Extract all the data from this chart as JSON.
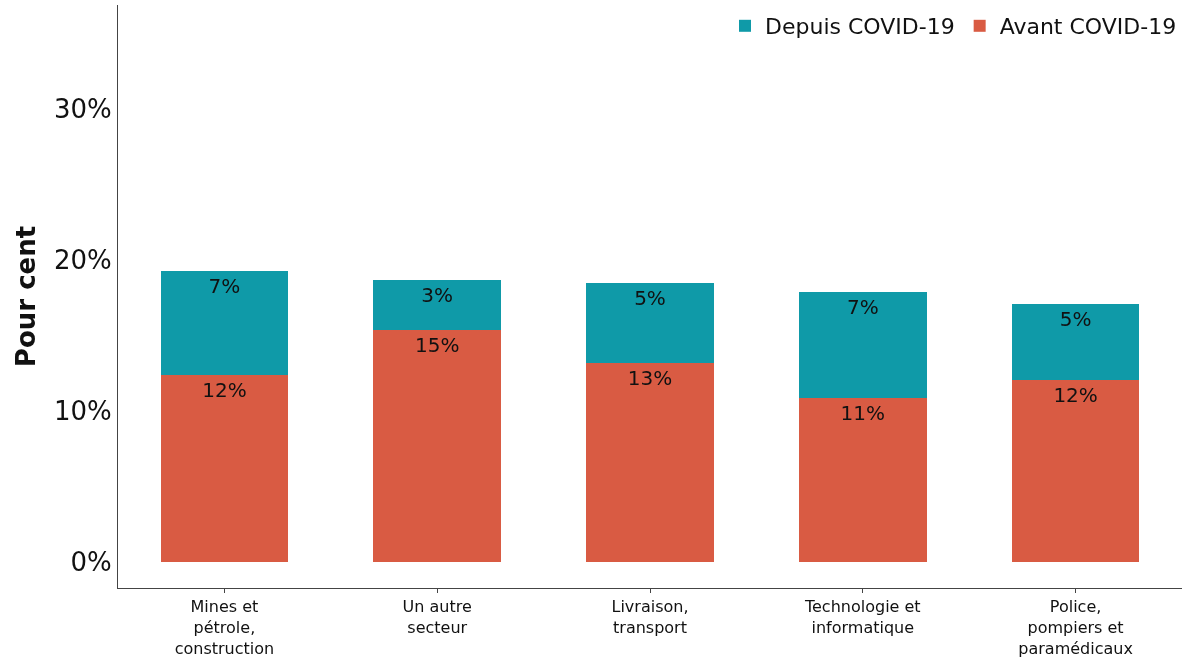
{
  "chart_data": {
    "type": "bar",
    "stacked": true,
    "ylabel": "Pour cent",
    "categories": [
      "Mines et pétrole, construction",
      "Un autre secteur",
      "Livraison, transport",
      "Technologie et informatique",
      "Police, pompiers et paramédicaux"
    ],
    "series": [
      {
        "name": "Avant COVID-19",
        "color": "#d95b43",
        "values": [
          12.4,
          15.4,
          13.2,
          10.9,
          12.1
        ],
        "value_labels": [
          "12%",
          "15%",
          "13%",
          "11%",
          "12%"
        ]
      },
      {
        "name": "Depuis COVID-19",
        "color": "#0f9aa8",
        "values": [
          6.9,
          3.3,
          5.3,
          7.0,
          5.0
        ],
        "value_labels": [
          "7%",
          "3%",
          "5%",
          "7%",
          "5%"
        ]
      }
    ],
    "ylim": [
      -1.7,
      36.9
    ],
    "yticks": [
      {
        "value": 0,
        "label": "0%"
      },
      {
        "value": 10,
        "label": "10%"
      },
      {
        "value": 20,
        "label": "20%"
      },
      {
        "value": 30,
        "label": "30%"
      }
    ],
    "grid": false,
    "legend": "top right"
  }
}
